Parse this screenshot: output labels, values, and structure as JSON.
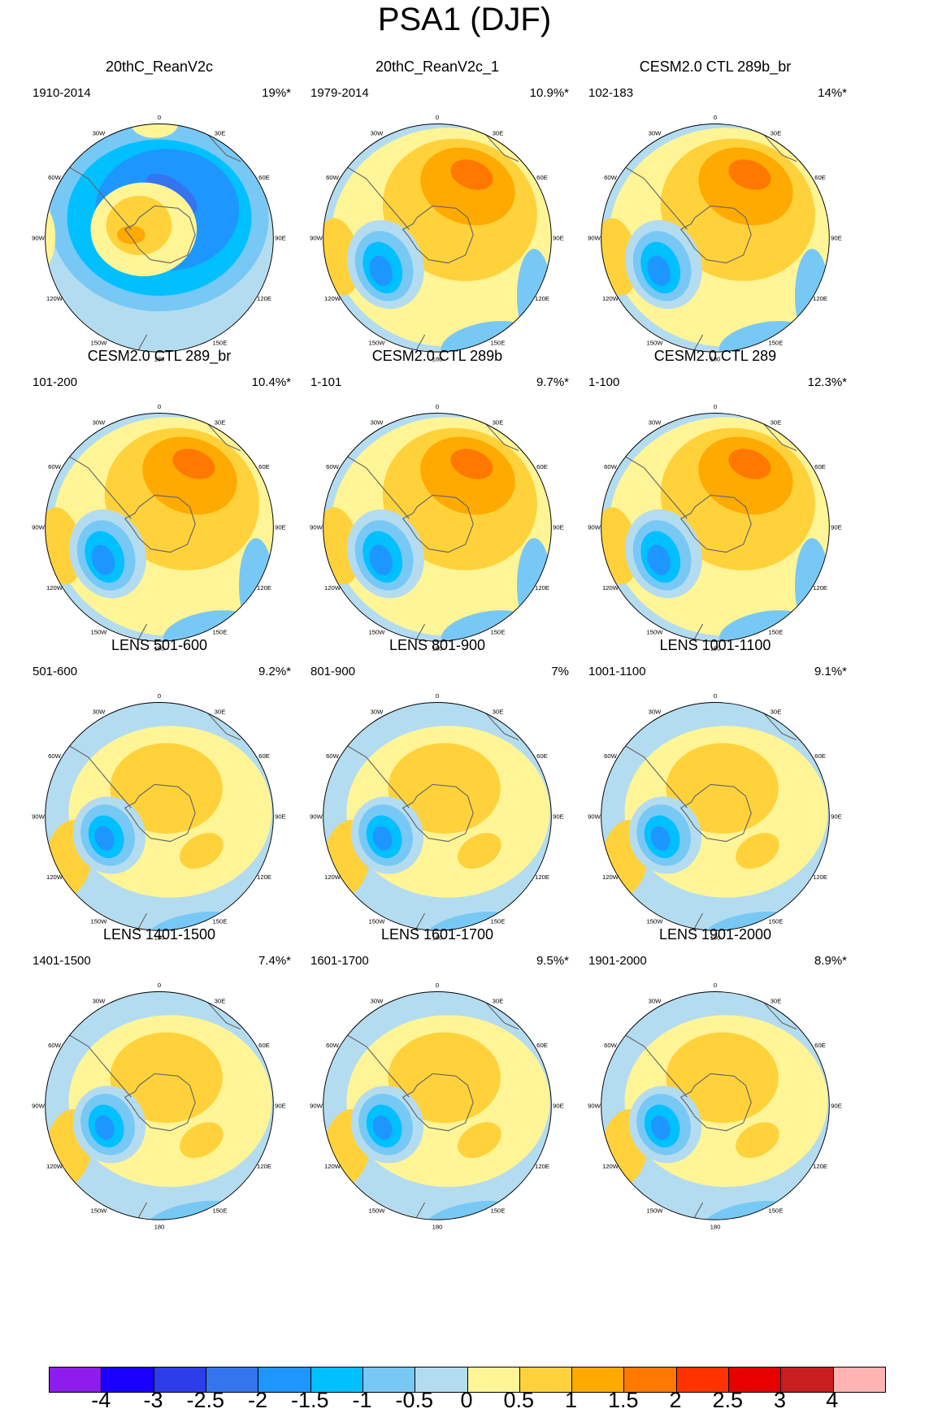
{
  "title": "PSA1 (DJF)",
  "lon_labels": [
    "0",
    "30E",
    "60E",
    "90E",
    "120E",
    "150E",
    "180",
    "150W",
    "120W",
    "90W",
    "60W",
    "30W"
  ],
  "panels": [
    {
      "title": "20thC_ReanV2c",
      "period": "1910-2014",
      "percent": "19%*",
      "pattern": "ring"
    },
    {
      "title": "20thC_ReanV2c_1",
      "period": "1979-2014",
      "percent": "10.9%*",
      "pattern": "strong"
    },
    {
      "title": "CESM2.0 CTL 289b_br",
      "period": "102-183",
      "percent": "14%*",
      "pattern": "strong"
    },
    {
      "title": "CESM2.0 CTL 289_br",
      "period": "101-200",
      "percent": "10.4%*",
      "pattern": "strong"
    },
    {
      "title": "CESM2.0 CTL 289b",
      "period": "1-101",
      "percent": "9.7%*",
      "pattern": "strong"
    },
    {
      "title": "CESM2.0 CTL 289",
      "period": "1-100",
      "percent": "12.3%*",
      "pattern": "strong"
    },
    {
      "title": "LENS 501-600",
      "period": "501-600",
      "percent": "9.2%*",
      "pattern": "weak"
    },
    {
      "title": "LENS 801-900",
      "period": "801-900",
      "percent": "7%",
      "pattern": "weak"
    },
    {
      "title": "LENS 1001-1100",
      "period": "1001-1100",
      "percent": "9.1%*",
      "pattern": "weak"
    },
    {
      "title": "LENS 1401-1500",
      "period": "1401-1500",
      "percent": "7.4%*",
      "pattern": "weak"
    },
    {
      "title": "LENS 1601-1700",
      "period": "1601-1700",
      "percent": "9.5%*",
      "pattern": "weak"
    },
    {
      "title": "LENS 1901-2000",
      "period": "1901-2000",
      "percent": "8.9%*",
      "pattern": "weak"
    }
  ],
  "colorbar": {
    "colors": [
      "#8d1ced",
      "#1a00ff",
      "#2e3dea",
      "#3475ee",
      "#1e96ff",
      "#00c0ff",
      "#78c8f5",
      "#b4dcf0",
      "#fff596",
      "#ffd23c",
      "#ffaa00",
      "#ff7800",
      "#ff3200",
      "#e60000",
      "#c81e1e",
      "#ffb4b4"
    ],
    "labels": [
      "-4",
      "-3",
      "-2.5",
      "-2",
      "-1.5",
      "-1",
      "-0.5",
      "0",
      "0.5",
      "1",
      "1.5",
      "2",
      "2.5",
      "3",
      "4"
    ],
    "color_names": {
      "neg3": "#2e3dea",
      "neg25": "#3475ee",
      "neg2": "#1e96ff",
      "neg15": "#00c0ff",
      "neg1": "#78c8f5",
      "neg05": "#b4dcf0",
      "pos0": "#fff596",
      "pos05": "#ffd23c",
      "pos1": "#ffaa00",
      "pos15": "#ff7800"
    }
  }
}
